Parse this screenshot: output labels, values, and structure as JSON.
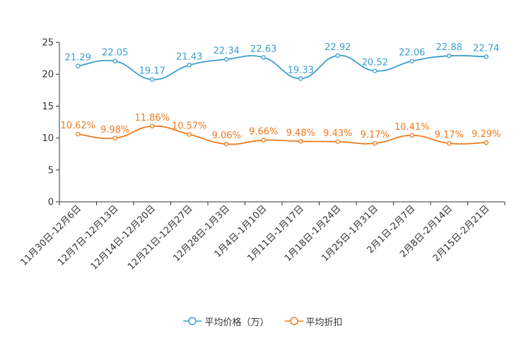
{
  "chart_data": {
    "type": "line",
    "title": "",
    "xlabel": "",
    "ylabel": "",
    "ylim": [
      0,
      25
    ],
    "yticks": [
      0,
      5,
      10,
      15,
      20,
      25
    ],
    "categories": [
      "11月30日-12月6日",
      "12月7日-12月13日",
      "12月14日-12月20日",
      "12月21日-12月27日",
      "12月28日-1月3日",
      "1月4日-1月10日",
      "1月11日-1月17日",
      "1月18日-1月24日",
      "1月25日-1月31日",
      "2月1日-2月7日",
      "2月8日-2月14日",
      "2月15日-2月21日"
    ],
    "series": [
      {
        "name": "平均价格（万）",
        "color": "#3a9fd0",
        "values": [
          21.29,
          22.05,
          19.17,
          21.43,
          22.34,
          22.63,
          19.33,
          22.92,
          20.52,
          22.06,
          22.88,
          22.74
        ],
        "labels": [
          "21.29",
          "22.05",
          "19.17",
          "21.43",
          "22.34",
          "22.63",
          "19.33",
          "22.92",
          "20.52",
          "22.06",
          "22.88",
          "22.74"
        ]
      },
      {
        "name": "平均折扣",
        "color": "#f07a1c",
        "values": [
          10.62,
          9.98,
          11.86,
          10.57,
          9.06,
          9.66,
          9.48,
          9.43,
          9.17,
          10.41,
          9.17,
          9.29
        ],
        "labels": [
          "10.62%",
          "9.98%",
          "11.86%",
          "10.57%",
          "9.06%",
          "9.66%",
          "9.48%",
          "9.43%",
          "9.17%",
          "10.41%",
          "9.17%",
          "9.29%"
        ]
      }
    ],
    "legend_position": "bottom-center",
    "grid": false
  },
  "legend": {
    "items": [
      {
        "label": "平均价格（万）",
        "color": "#3a9fd0"
      },
      {
        "label": "平均折扣",
        "color": "#f07a1c"
      }
    ]
  }
}
